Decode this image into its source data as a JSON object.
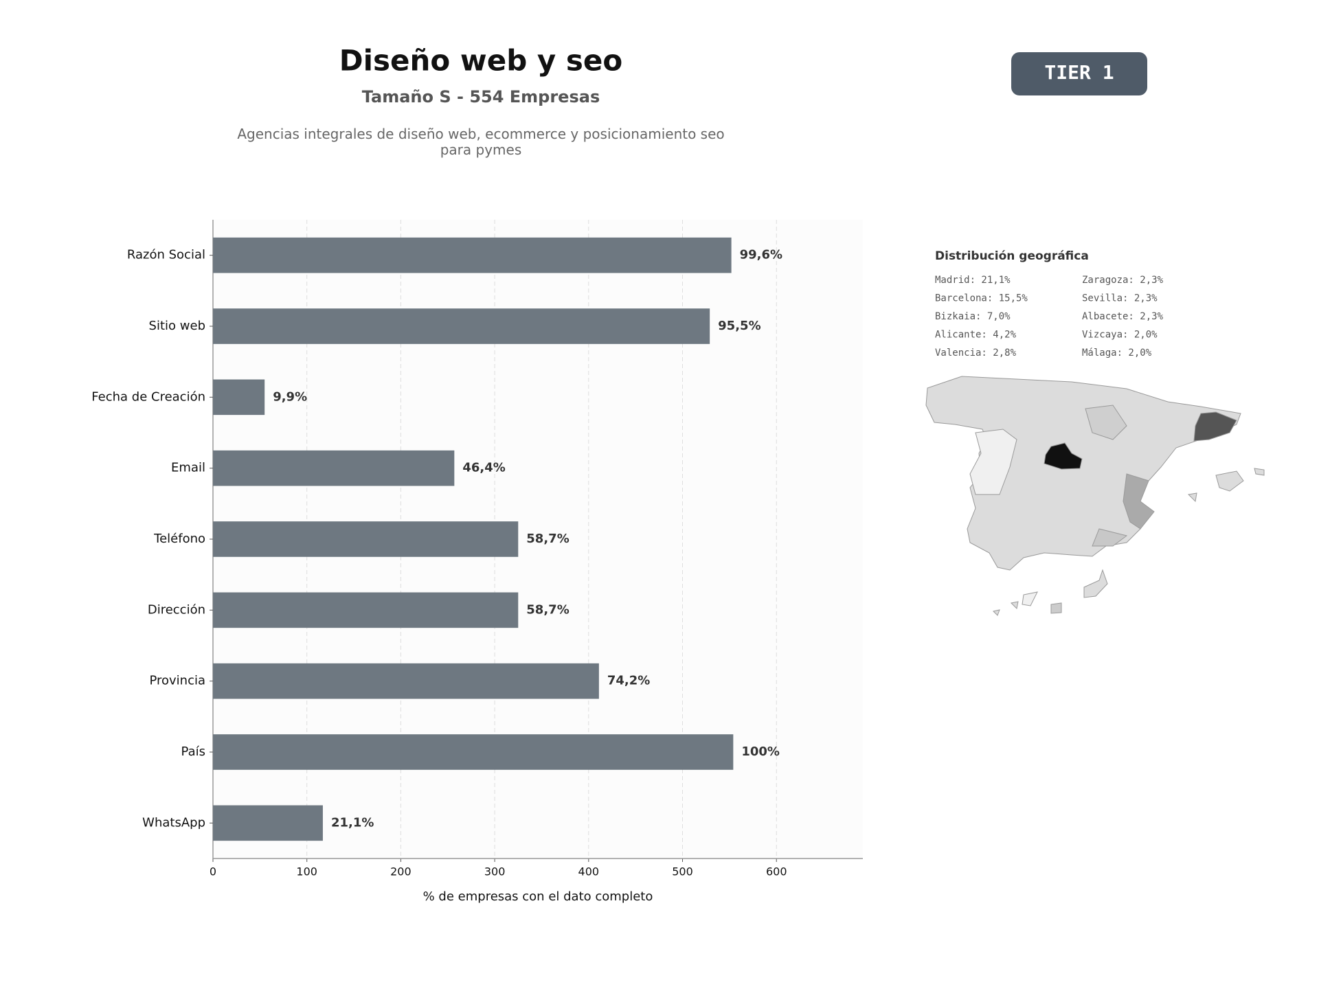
{
  "chart_data": {
    "type": "bar",
    "orientation": "horizontal",
    "title": "Diseño web y seo",
    "subtitle": "Tamaño S - 554 Empresas",
    "description": "Agencias integrales de diseño web, ecommerce y posicionamiento seo\npara pymes",
    "xlabel": "% de empresas con el dato completo",
    "categories": [
      "Razón Social",
      "Sitio web",
      "Fecha de Creación",
      "Email",
      "Teléfono",
      "Dirección",
      "Provincia",
      "País",
      "WhatsApp"
    ],
    "values": [
      552,
      529,
      55,
      257,
      325,
      325,
      411,
      554,
      117
    ],
    "value_labels": [
      "99,6%",
      "95,5%",
      "9,9%",
      "46,4%",
      "58,7%",
      "58,7%",
      "74,2%",
      "100%",
      "21,1%"
    ],
    "color": "#6e7881",
    "xlim": [
      0,
      692
    ],
    "xticks": [
      0,
      100,
      200,
      300,
      400,
      500,
      600
    ],
    "grid": true
  },
  "tier_badge": "TIER 1",
  "geo_distribution": {
    "title": "Distribución geográfica",
    "items": [
      "Madrid: 21,1%",
      "Barcelona: 15,5%",
      "Bizkaia: 7,0%",
      "Alicante: 4,2%",
      "Valencia: 2,8%",
      "Zaragoza: 2,3%",
      "Sevilla: 2,3%",
      "Albacete: 2,3%",
      "Vizcaya: 2,0%",
      "Málaga: 2,0%"
    ]
  }
}
